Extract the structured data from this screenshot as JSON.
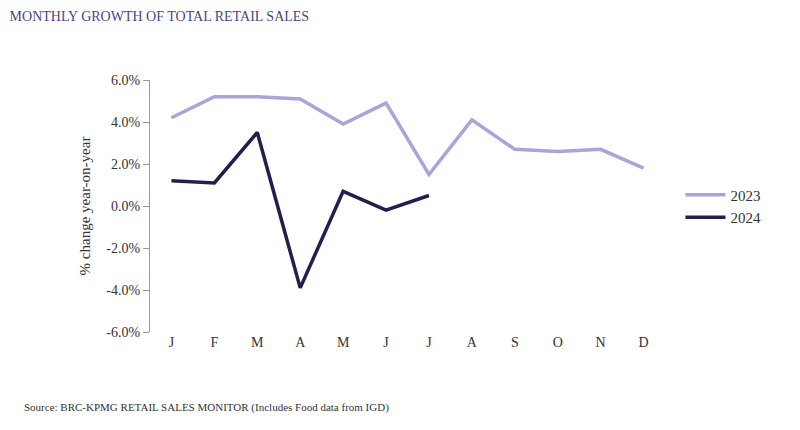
{
  "chart_data": {
    "type": "line",
    "title": "MONTHLY GROWTH OF TOTAL RETAIL SALES",
    "y_label": "% change year-on-year",
    "source": "Source: BRC-KPMG RETAIL SALES MONITOR (Includes Food data from IGD)",
    "categories": [
      "J",
      "F",
      "M",
      "A",
      "M",
      "J",
      "J",
      "A",
      "S",
      "O",
      "N",
      "D"
    ],
    "series": [
      {
        "name": "2023",
        "color": "#a9a4da",
        "values": [
          4.2,
          5.2,
          5.2,
          5.1,
          3.9,
          4.9,
          1.5,
          4.1,
          2.7,
          2.6,
          2.7,
          1.8
        ]
      },
      {
        "name": "2024",
        "color": "#221f4f",
        "values": [
          1.2,
          1.1,
          3.5,
          -3.9,
          0.7,
          -0.2,
          0.5,
          null,
          null,
          null,
          null,
          null
        ]
      }
    ],
    "ylim": [
      -6,
      6
    ],
    "yticks": [
      {
        "value": -6,
        "label": "-6.0%"
      },
      {
        "value": -4,
        "label": "-4.0%"
      },
      {
        "value": -2,
        "label": "-2.0%"
      },
      {
        "value": 0,
        "label": "0.0%"
      },
      {
        "value": 2,
        "label": "2.0%"
      },
      {
        "value": 4,
        "label": "4.0%"
      },
      {
        "value": 6,
        "label": "6.0%"
      }
    ],
    "grid": false,
    "legend": "right"
  }
}
